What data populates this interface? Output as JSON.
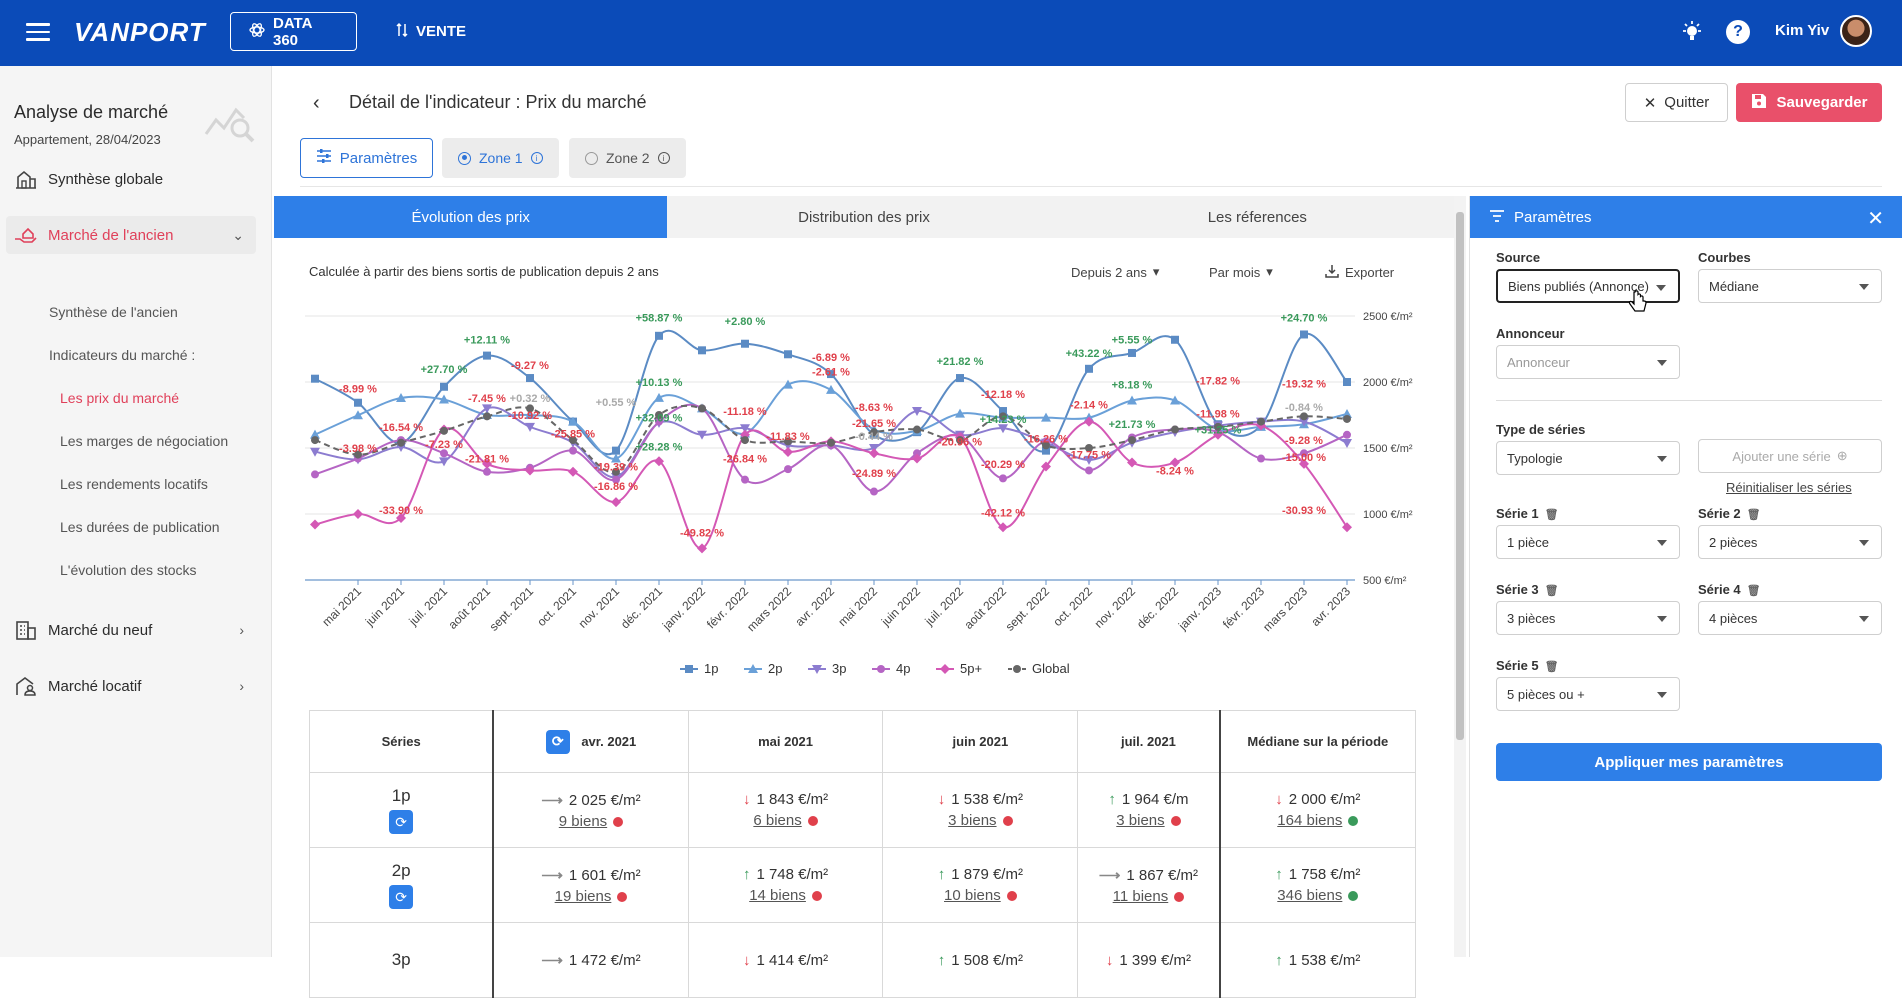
{
  "topbar": {
    "logo": "VANPORT",
    "data_label": "DATA 360",
    "vente_label": "VENTE",
    "user_name": "Kim Yiv",
    "help": "?"
  },
  "sidebar": {
    "title": "Analyse de marché",
    "subtitle": "Appartement, 28/04/2023",
    "items": [
      {
        "label": "Synthèse globale"
      },
      {
        "label": "Marché de l'ancien"
      },
      {
        "label": "Marché du neuf"
      },
      {
        "label": "Marché locatif"
      }
    ],
    "sub_items": [
      {
        "label": "Synthèse de l'ancien"
      },
      {
        "label": "Indicateurs du marché :"
      },
      {
        "label": "Les prix du marché"
      },
      {
        "label": "Les marges de négociation"
      },
      {
        "label": "Les rendements locatifs"
      },
      {
        "label": "Les durées de publication"
      },
      {
        "label": "L'évolution des stocks"
      }
    ]
  },
  "header": {
    "title": "Détail de l'indicateur : Prix du marché",
    "quit": "Quitter",
    "save": "Sauvegarder",
    "params": "Paramètres",
    "zone1": "Zone 1",
    "zone2": "Zone 2"
  },
  "tabs": [
    "Évolution des prix",
    "Distribution des prix",
    "Les réferences"
  ],
  "chart_controls": {
    "caption": "Calculée à partir des biens sortis de publication depuis 2 ans",
    "period": "Depuis 2 ans",
    "granularity": "Par mois",
    "export": "Exporter"
  },
  "chart_data": {
    "type": "line",
    "categories": [
      "avr. 2021",
      "mai 2021",
      "juin 2021",
      "juil. 2021",
      "août 2021",
      "sept. 2021",
      "oct. 2021",
      "nov. 2021",
      "déc. 2021",
      "janv. 2022",
      "févr. 2022",
      "mars 2022",
      "avr. 2022",
      "mai 2022",
      "juin 2022",
      "juil. 2022",
      "août 2022",
      "sept. 2022",
      "oct. 2022",
      "nov. 2022",
      "déc. 2022",
      "janv. 2023",
      "févr. 2023",
      "mars 2023",
      "avr. 2023"
    ],
    "xtick_labels": [
      "mai 2021",
      "juin 2021",
      "juil. 2021",
      "août 2021",
      "sept. 2021",
      "oct. 2021",
      "nov. 2021",
      "déc. 2021",
      "janv. 2022",
      "févr. 2022",
      "mars 2022",
      "avr. 2022",
      "mai 2022",
      "juin 2022",
      "juil. 2022",
      "août 2022",
      "sept. 2022",
      "oct. 2022",
      "nov. 2022",
      "déc. 2022",
      "janv. 2023",
      "févr. 2023",
      "mars 2023",
      "avr. 2023"
    ],
    "ytick_labels": [
      "2500 €/m²",
      "2000 €/m²",
      "1500 €/m²",
      "1000 €/m²",
      "500 €/m²"
    ],
    "ylim": [
      500,
      2500
    ],
    "series": [
      {
        "name": "1p",
        "color": "#5b8bc4",
        "marker": "square",
        "values": [
          2025,
          1843,
          1538,
          1964,
          2200,
          2030,
          1700,
          1480,
          2350,
          2240,
          2290,
          2210,
          2060,
          1600,
          1620,
          2030,
          1780,
          1480,
          2100,
          2220,
          2320,
          1680,
          1670,
          2360,
          2000
        ]
      },
      {
        "name": "2p",
        "color": "#6aa0d8",
        "marker": "triangle",
        "values": [
          1601,
          1748,
          1879,
          1867,
          1750,
          1750,
          1700,
          1420,
          1880,
          1800,
          1610,
          1980,
          1940,
          1640,
          1630,
          1760,
          1730,
          1730,
          1730,
          1860,
          1860,
          1640,
          1660,
          1680,
          1758
        ]
      },
      {
        "name": "3p",
        "color": "#8c7cd0",
        "marker": "triangle-down",
        "values": [
          1472,
          1414,
          1508,
          1399,
          1800,
          1660,
          1540,
          1280,
          1690,
          1600,
          1650,
          1520,
          1520,
          1500,
          1780,
          1600,
          1650,
          1540,
          1410,
          1540,
          1620,
          1670,
          1700,
          1700,
          1538
        ]
      },
      {
        "name": "4p",
        "color": "#b565c4",
        "marker": "circle",
        "values": [
          1300,
          1420,
          1560,
          1460,
          1320,
          1350,
          1480,
          1260,
          1700,
          1800,
          1260,
          1340,
          1520,
          1170,
          1460,
          1590,
          1270,
          1550,
          1330,
          1580,
          1640,
          1620,
          1420,
          1460,
          1600
        ]
      },
      {
        "name": "5p+",
        "color": "#d458b5",
        "marker": "diamond",
        "values": [
          920,
          1000,
          970,
          1640,
          1380,
          1330,
          1320,
          1090,
          1400,
          740,
          1600,
          1470,
          1550,
          1460,
          1420,
          1580,
          900,
          1360,
          1700,
          1390,
          1390,
          1600,
          1670,
          1380,
          900
        ]
      },
      {
        "name": "Global",
        "color": "#666666",
        "marker": "circle",
        "dashed": true,
        "values": [
          1560,
          1450,
          1540,
          1630,
          1740,
          1800,
          1560,
          1320,
          1750,
          1800,
          1560,
          1550,
          1540,
          1620,
          1640,
          1560,
          1740,
          1520,
          1500,
          1560,
          1640,
          1660,
          1700,
          1740,
          1720
        ]
      }
    ],
    "annotations": [
      {
        "text": "-8.99 %",
        "color": "#e0404b",
        "cat": 1,
        "y": 1920
      },
      {
        "text": "-3.98 %",
        "color": "#e0404b",
        "cat": 1,
        "y": 1470
      },
      {
        "text": "-16.54 %",
        "color": "#e0404b",
        "cat": 2,
        "y": 1630
      },
      {
        "text": "-33.90 %",
        "color": "#e0404b",
        "cat": 2,
        "y": 1000
      },
      {
        "text": "+27.70 %",
        "color": "#3a9a5b",
        "cat": 3,
        "y": 2070
      },
      {
        "text": "-7.23 %",
        "color": "#e0404b",
        "cat": 3,
        "y": 1500
      },
      {
        "text": "+12.11 %",
        "color": "#3a9a5b",
        "cat": 4,
        "y": 2290
      },
      {
        "text": "-7.45 %",
        "color": "#e0404b",
        "cat": 4,
        "y": 1850
      },
      {
        "text": "-21.81 %",
        "color": "#e0404b",
        "cat": 4,
        "y": 1390
      },
      {
        "text": "-9.27 %",
        "color": "#e0404b",
        "cat": 5,
        "y": 2100
      },
      {
        "text": "+0.32 %",
        "color": "#aaaaaa",
        "cat": 5,
        "y": 1850
      },
      {
        "text": "-10.92 %",
        "color": "#e0404b",
        "cat": 5,
        "y": 1720
      },
      {
        "text": "-25.85 %",
        "color": "#e0404b",
        "cat": 6,
        "y": 1580
      },
      {
        "text": "+0.55 %",
        "color": "#aaaaaa",
        "cat": 7,
        "y": 1820
      },
      {
        "text": "-19.39 %",
        "color": "#e0404b",
        "cat": 7,
        "y": 1330
      },
      {
        "text": "-16.86 %",
        "color": "#e0404b",
        "cat": 7,
        "y": 1180
      },
      {
        "text": "+58.87 %",
        "color": "#3a9a5b",
        "cat": 8,
        "y": 2460
      },
      {
        "text": "+10.13 %",
        "color": "#3a9a5b",
        "cat": 8,
        "y": 1970
      },
      {
        "text": "+32.09 %",
        "color": "#3a9a5b",
        "cat": 8,
        "y": 1700
      },
      {
        "text": "+28.28 %",
        "color": "#3a9a5b",
        "cat": 8,
        "y": 1480
      },
      {
        "text": "-49.82 %",
        "color": "#e0404b",
        "cat": 9,
        "y": 830
      },
      {
        "text": "+2.80 %",
        "color": "#3a9a5b",
        "cat": 10,
        "y": 2430
      },
      {
        "text": "-11.18 %",
        "color": "#e0404b",
        "cat": 10,
        "y": 1750
      },
      {
        "text": "-26.84 %",
        "color": "#e0404b",
        "cat": 10,
        "y": 1390
      },
      {
        "text": "-11.83 %",
        "color": "#e0404b",
        "cat": 11,
        "y": 1560
      },
      {
        "text": "-6.89 %",
        "color": "#e0404b",
        "cat": 12,
        "y": 2160
      },
      {
        "text": "-2.61 %",
        "color": "#e0404b",
        "cat": 12,
        "y": 2050
      },
      {
        "text": "-8.63 %",
        "color": "#e0404b",
        "cat": 13,
        "y": 1780
      },
      {
        "text": "-21.65 %",
        "color": "#e0404b",
        "cat": 13,
        "y": 1660
      },
      {
        "text": "-0.44 %",
        "color": "#aaaaaa",
        "cat": 13,
        "y": 1560
      },
      {
        "text": "-24.89 %",
        "color": "#e0404b",
        "cat": 13,
        "y": 1280
      },
      {
        "text": "+21.82 %",
        "color": "#3a9a5b",
        "cat": 15,
        "y": 2130
      },
      {
        "text": "-20.96 %",
        "color": "#e0404b",
        "cat": 15,
        "y": 1520
      },
      {
        "text": "-12.18 %",
        "color": "#e0404b",
        "cat": 16,
        "y": 1880
      },
      {
        "text": "+14.23 %",
        "color": "#3a9a5b",
        "cat": 16,
        "y": 1690
      },
      {
        "text": "-20.29 %",
        "color": "#e0404b",
        "cat": 16,
        "y": 1350
      },
      {
        "text": "-42.12 %",
        "color": "#e0404b",
        "cat": 16,
        "y": 980
      },
      {
        "text": "-16.26 %",
        "color": "#e0404b",
        "cat": 17,
        "y": 1540
      },
      {
        "text": "+43.22 %",
        "color": "#3a9a5b",
        "cat": 18,
        "y": 2190
      },
      {
        "text": "-2.14 %",
        "color": "#e0404b",
        "cat": 18,
        "y": 1800
      },
      {
        "text": "-17.75 %",
        "color": "#e0404b",
        "cat": 18,
        "y": 1420
      },
      {
        "text": "+5.55 %",
        "color": "#3a9a5b",
        "cat": 19,
        "y": 2290
      },
      {
        "text": "+8.18 %",
        "color": "#3a9a5b",
        "cat": 19,
        "y": 1950
      },
      {
        "text": "+21.73 %",
        "color": "#3a9a5b",
        "cat": 19,
        "y": 1650
      },
      {
        "text": "-8.24 %",
        "color": "#e0404b",
        "cat": 20,
        "y": 1300
      },
      {
        "text": "-17.82 %",
        "color": "#e0404b",
        "cat": 21,
        "y": 1980
      },
      {
        "text": "-11.98 %",
        "color": "#e0404b",
        "cat": 21,
        "y": 1730
      },
      {
        "text": "+31.25 %",
        "color": "#3a9a5b",
        "cat": 21,
        "y": 1610
      },
      {
        "text": "+24.70 %",
        "color": "#3a9a5b",
        "cat": 23,
        "y": 2460
      },
      {
        "text": "-19.32 %",
        "color": "#e0404b",
        "cat": 23,
        "y": 1960
      },
      {
        "text": "-0.84 %",
        "color": "#aaaaaa",
        "cat": 23,
        "y": 1780
      },
      {
        "text": "-9.28 %",
        "color": "#e0404b",
        "cat": 23,
        "y": 1530
      },
      {
        "text": "-15.00 %",
        "color": "#e0404b",
        "cat": 23,
        "y": 1400
      },
      {
        "text": "-30.93 %",
        "color": "#e0404b",
        "cat": 23,
        "y": 1000
      }
    ]
  },
  "table": {
    "headers": [
      "Séries",
      "avr. 2021",
      "mai 2021",
      "juin 2021",
      "juil. 2021",
      "Médiane sur la période"
    ],
    "rows": [
      {
        "name": "1p",
        "cells": [
          {
            "arrow": "flat",
            "value": "2 025 €/m²",
            "count": "9 biens",
            "dot": "red"
          },
          {
            "arrow": "down",
            "value": "1 843 €/m²",
            "count": "6 biens",
            "dot": "red"
          },
          {
            "arrow": "down",
            "value": "1 538 €/m²",
            "count": "3 biens",
            "dot": "red"
          },
          {
            "arrow": "up",
            "value": "1 964 €/m",
            "count": "3 biens",
            "dot": "red"
          },
          {
            "arrow": "down",
            "value": "2 000 €/m²",
            "count": "164 biens",
            "dot": "green"
          }
        ]
      },
      {
        "name": "2p",
        "cells": [
          {
            "arrow": "flat",
            "value": "1 601 €/m²",
            "count": "19 biens",
            "dot": "red"
          },
          {
            "arrow": "up",
            "value": "1 748 €/m²",
            "count": "14 biens",
            "dot": "red"
          },
          {
            "arrow": "up",
            "value": "1 879 €/m²",
            "count": "10 biens",
            "dot": "red"
          },
          {
            "arrow": "flat",
            "value": "1 867 €/m²",
            "count": "11 biens",
            "dot": "red"
          },
          {
            "arrow": "up",
            "value": "1 758 €/m²",
            "count": "346 biens",
            "dot": "green"
          }
        ]
      },
      {
        "name": "3p",
        "cells": [
          {
            "arrow": "flat",
            "value": "1 472 €/m²",
            "count": "",
            "dot": ""
          },
          {
            "arrow": "down",
            "value": "1 414 €/m²",
            "count": "",
            "dot": ""
          },
          {
            "arrow": "up",
            "value": "1 508 €/m²",
            "count": "",
            "dot": ""
          },
          {
            "arrow": "down",
            "value": "1 399 €/m²",
            "count": "",
            "dot": ""
          },
          {
            "arrow": "up",
            "value": "1 538 €/m²",
            "count": "",
            "dot": ""
          }
        ]
      }
    ]
  },
  "panel": {
    "title": "Paramètres",
    "source_label": "Source",
    "source_value": "Biens publiés (Annonce)",
    "courbes_label": "Courbes",
    "courbes_value": "Médiane",
    "annonceur_label": "Annonceur",
    "annonceur_placeholder": "Annonceur",
    "type_label": "Type de séries",
    "type_value": "Typologie",
    "add_series": "Ajouter une série",
    "reset": "Réinitialiser les séries",
    "series": [
      {
        "label": "Série 1",
        "value": "1 pièce"
      },
      {
        "label": "Série 2",
        "value": "2 pièces"
      },
      {
        "label": "Série 3",
        "value": "3 pièces"
      },
      {
        "label": "Série 4",
        "value": "4 pièces"
      },
      {
        "label": "Série 5",
        "value": "5 pièces ou +"
      }
    ],
    "apply": "Appliquer mes paramètres"
  }
}
